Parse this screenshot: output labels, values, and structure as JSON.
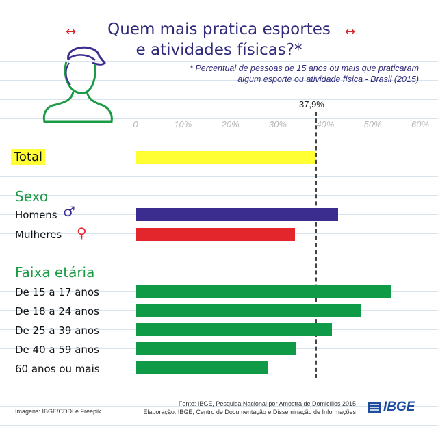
{
  "header": {
    "title_line1": "Quem mais pratica esportes",
    "title_line2": "e atividades físicas?*",
    "subtitle_line1": "* Percentual de pessoas de 15 anos ou mais que praticaram",
    "subtitle_line2": "algum esporte ou atividade física - Brasil (2015)"
  },
  "chart_data": {
    "type": "bar",
    "orientation": "horizontal",
    "xlim": [
      0,
      60
    ],
    "ticks": [
      "0",
      "10%",
      "20%",
      "30%",
      "40%",
      "50%",
      "60%"
    ],
    "reference_label": "37,9%",
    "reference_value": 37.9,
    "sections": {
      "sex": "Sexo",
      "age": "Faixa etária"
    },
    "categories": [
      "Total",
      "Homens",
      "Mulheres",
      "De 15 a 17 anos",
      "De 18 a 24 anos",
      "De 25 a 39 anos",
      "De 40 a 59 anos",
      "60 anos ou mais"
    ],
    "values": [
      37.9,
      42.7,
      33.6,
      54.0,
      47.6,
      41.4,
      33.7,
      27.8
    ],
    "colors": [
      "#ffff33",
      "#3b2d8f",
      "#e3262c",
      "#0f9a47",
      "#0f9a47",
      "#0f9a47",
      "#0f9a47",
      "#0f9a47"
    ]
  },
  "footer": {
    "images_credit": "Imagens: IBGE/CDDI e Freepik",
    "source": "Fonte:  IBGE, Pesquisa Nacional por Amostra de Domicílios 2015",
    "elaboration": "Elaboração: IBGE, Centro de Documentação e Disseminação de Informações",
    "logo_text": "IBGE"
  },
  "icons": {
    "male": "male-symbol-icon",
    "female": "female-symbol-icon",
    "person": "person-cap-icon",
    "arrows": "double-arrow-icon"
  }
}
